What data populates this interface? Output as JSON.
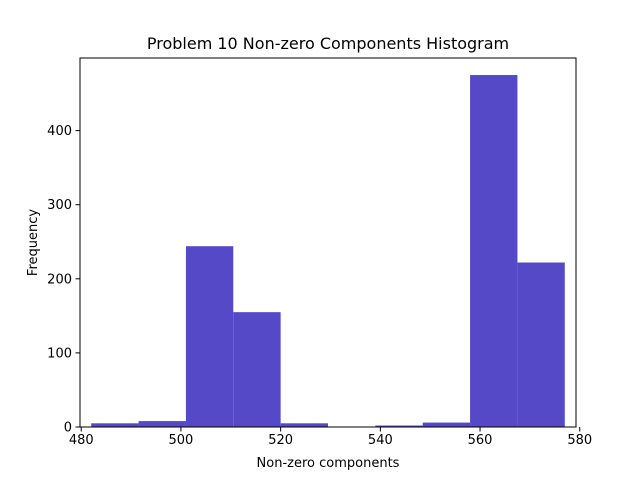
{
  "chart_data": {
    "type": "bar",
    "title": "Problem 10 Non-zero Components Histogram",
    "xlabel": "Non-zero components",
    "ylabel": "Frequency",
    "xlim": [
      479.75,
      579.25
    ],
    "ylim": [
      0,
      498
    ],
    "x_ticks": [
      480,
      500,
      520,
      540,
      560,
      580
    ],
    "y_ticks": [
      0,
      100,
      200,
      300,
      400
    ],
    "bar_color": "#5549c8",
    "bins": [
      {
        "start": 482,
        "end": 491.5,
        "count": 5
      },
      {
        "start": 491.5,
        "end": 501,
        "count": 8
      },
      {
        "start": 501,
        "end": 510.5,
        "count": 244
      },
      {
        "start": 510.5,
        "end": 520,
        "count": 155
      },
      {
        "start": 520,
        "end": 529.5,
        "count": 5
      },
      {
        "start": 529.5,
        "end": 539,
        "count": 0
      },
      {
        "start": 539,
        "end": 548.5,
        "count": 2
      },
      {
        "start": 548.5,
        "end": 558,
        "count": 6
      },
      {
        "start": 558,
        "end": 567.5,
        "count": 475
      },
      {
        "start": 567.5,
        "end": 577,
        "count": 222
      }
    ]
  }
}
